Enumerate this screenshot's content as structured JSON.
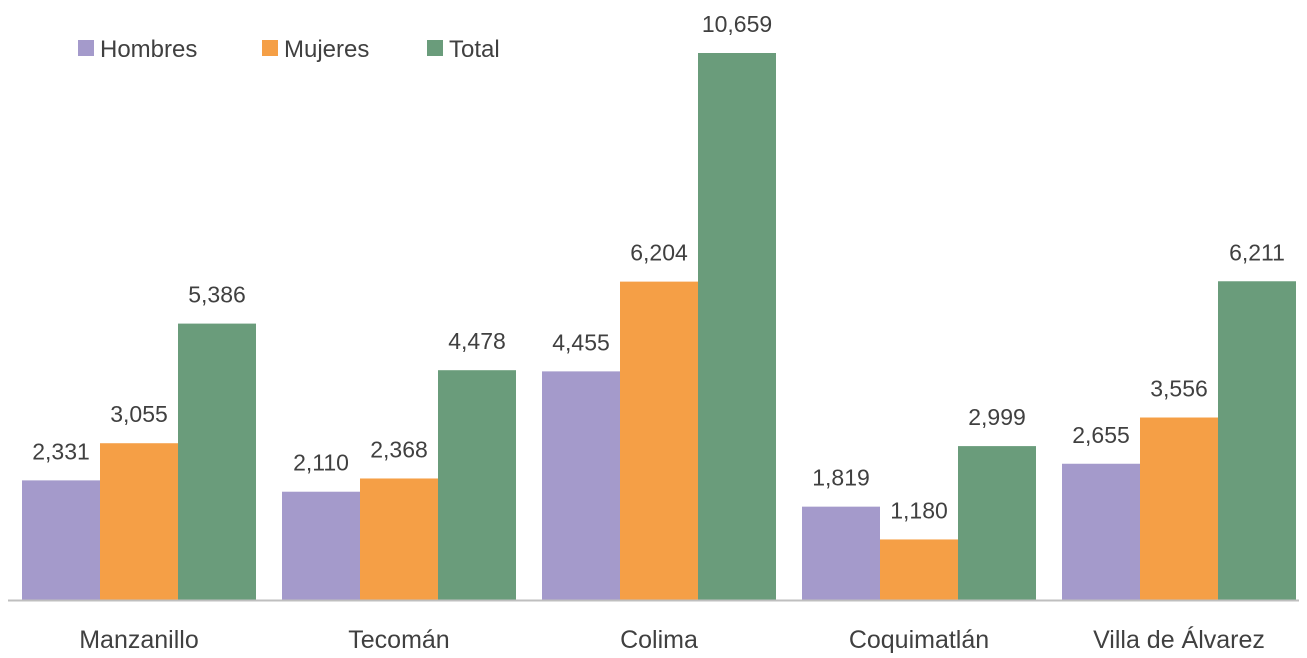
{
  "chart_data": {
    "type": "bar",
    "categories": [
      "Manzanillo",
      "Tecomán",
      "Colima",
      "Coquimatlán",
      "Villa de Álvarez"
    ],
    "series": [
      {
        "name": "Hombres",
        "color": "#a49acb",
        "values": [
          2331,
          2110,
          4455,
          1819,
          2655
        ],
        "labels": [
          "2,331",
          "2,110",
          "4,455",
          "1,819",
          "2,655"
        ]
      },
      {
        "name": "Mujeres",
        "color": "#f59f46",
        "values": [
          3055,
          2368,
          6204,
          1180,
          3556
        ],
        "labels": [
          "3,055",
          "2,368",
          "6,204",
          "1,180",
          "3,556"
        ]
      },
      {
        "name": "Total",
        "color": "#6a9c7b",
        "values": [
          5386,
          4478,
          10659,
          2999,
          6211
        ],
        "labels": [
          "5,386",
          "4,478",
          "10,659",
          "2,999",
          "6,211"
        ]
      }
    ],
    "title": "",
    "xlabel": "",
    "ylabel": "",
    "ylim": [
      0,
      10659
    ],
    "grid": false,
    "legend_position": "top-left",
    "axis_color": "#bfbfbf"
  }
}
